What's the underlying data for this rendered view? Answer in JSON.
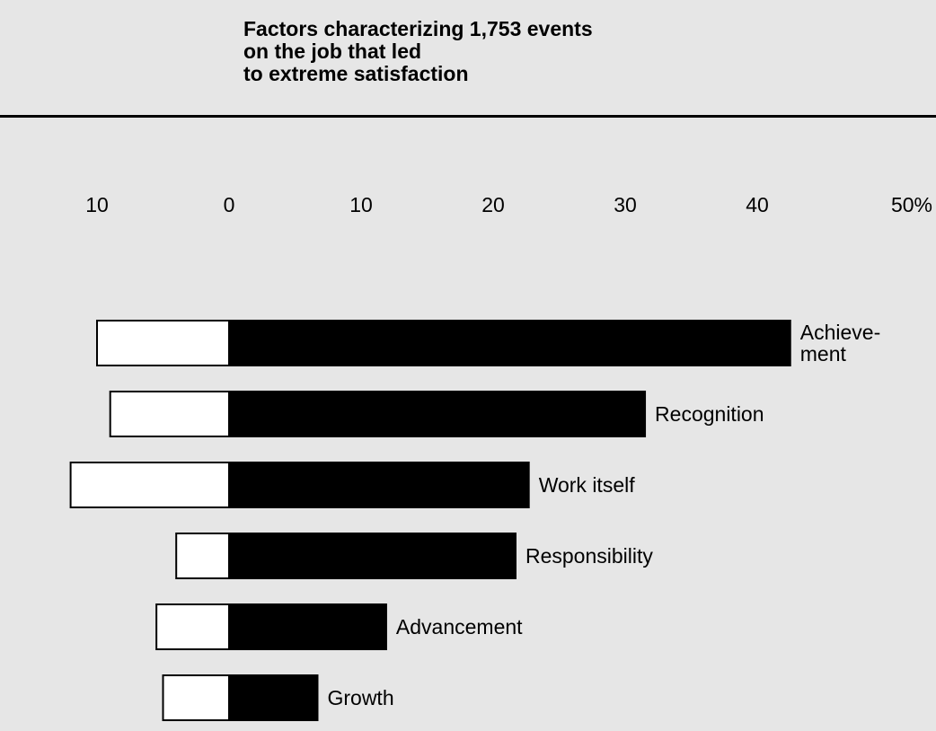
{
  "chart_data": {
    "type": "bar",
    "orientation": "horizontal",
    "stacked": "diverging",
    "title": [
      "Factors characterizing 1,753 events",
      "on the job that led",
      "to extreme satisfaction"
    ],
    "xlabel": "",
    "ylabel": "",
    "xlim": [
      -10,
      50
    ],
    "ticks": [
      {
        "value": -10,
        "label": "10"
      },
      {
        "value": 0,
        "label": "0"
      },
      {
        "value": 10,
        "label": "10"
      },
      {
        "value": 20,
        "label": "20"
      },
      {
        "value": 30,
        "label": "30"
      },
      {
        "value": 40,
        "label": "40"
      },
      {
        "value": 50,
        "label": "50%"
      }
    ],
    "categories": [
      [
        "Achieve-",
        "ment"
      ],
      [
        "Recognition"
      ],
      [
        "Work itself"
      ],
      [
        "Responsibility"
      ],
      [
        "Advancement"
      ],
      [
        "Growth"
      ]
    ],
    "series": [
      {
        "values": [
          -10,
          -9,
          -12,
          -4,
          -5.5,
          -5
        ],
        "color": "#ffffff"
      },
      {
        "values": [
          42.5,
          31.5,
          22.7,
          21.7,
          11.9,
          6.7
        ],
        "color": "#000000"
      }
    ],
    "grid": false,
    "legend": "none"
  }
}
